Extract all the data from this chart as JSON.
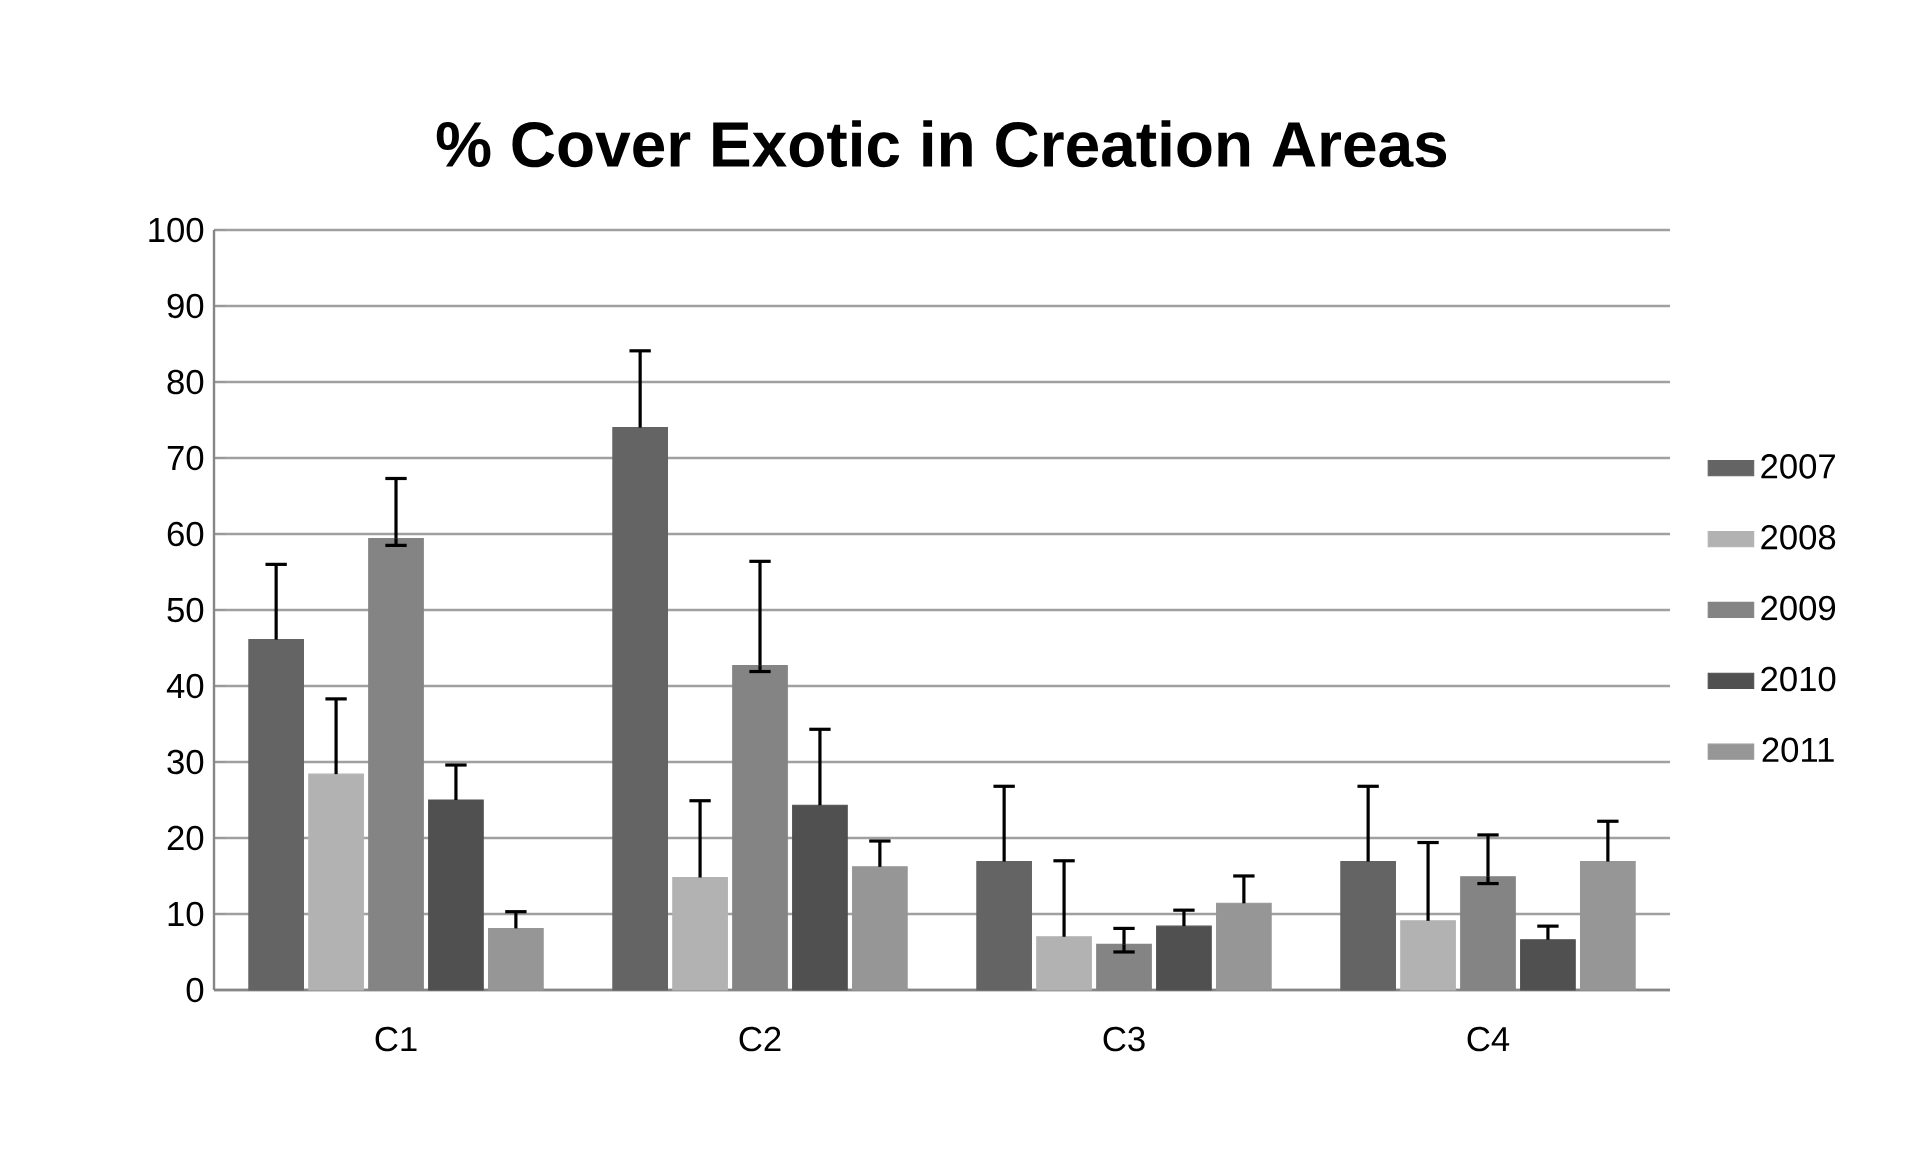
{
  "chart_data": {
    "type": "bar",
    "title": "% Cover Exotic in Creation Areas",
    "categories": [
      "C1",
      "C2",
      "C3",
      "C4"
    ],
    "series": [
      {
        "name": "2007",
        "color": "#646464",
        "values": [
          46.1,
          74.0,
          16.9,
          16.9
        ],
        "errors": [
          [
            46.1,
            56.0
          ],
          [
            74.0,
            84.1
          ],
          [
            16.9,
            26.8
          ],
          [
            16.9,
            26.8
          ]
        ]
      },
      {
        "name": "2008",
        "color": "#b2b2b2",
        "values": [
          28.4,
          14.8,
          7.0,
          9.1
        ],
        "errors": [
          [
            28.4,
            38.3
          ],
          [
            14.8,
            24.9
          ],
          [
            7.0,
            17.0
          ],
          [
            9.1,
            19.4
          ]
        ]
      },
      {
        "name": "2009",
        "color": "#848484",
        "values": [
          59.4,
          42.7,
          6.0,
          14.9
        ],
        "errors": [
          [
            58.5,
            67.3
          ],
          [
            41.9,
            56.4
          ],
          [
            5.0,
            8.1
          ],
          [
            14.0,
            20.4
          ]
        ]
      },
      {
        "name": "2010",
        "color": "#505050",
        "values": [
          25.0,
          24.3,
          8.4,
          6.6
        ],
        "errors": [
          [
            25.0,
            29.6
          ],
          [
            24.3,
            34.3
          ],
          [
            8.4,
            10.5
          ],
          [
            6.6,
            8.4
          ]
        ]
      },
      {
        "name": "2011",
        "color": "#969696",
        "values": [
          8.1,
          16.2,
          11.4,
          16.9
        ],
        "errors": [
          [
            8.1,
            10.3
          ],
          [
            16.2,
            19.6
          ],
          [
            11.4,
            15.0
          ],
          [
            16.9,
            22.2
          ]
        ]
      }
    ],
    "ylim": [
      0,
      100
    ],
    "yticks": [
      0,
      10,
      20,
      30,
      40,
      50,
      60,
      70,
      80,
      90,
      100
    ],
    "grid": "y",
    "legend": "right"
  }
}
